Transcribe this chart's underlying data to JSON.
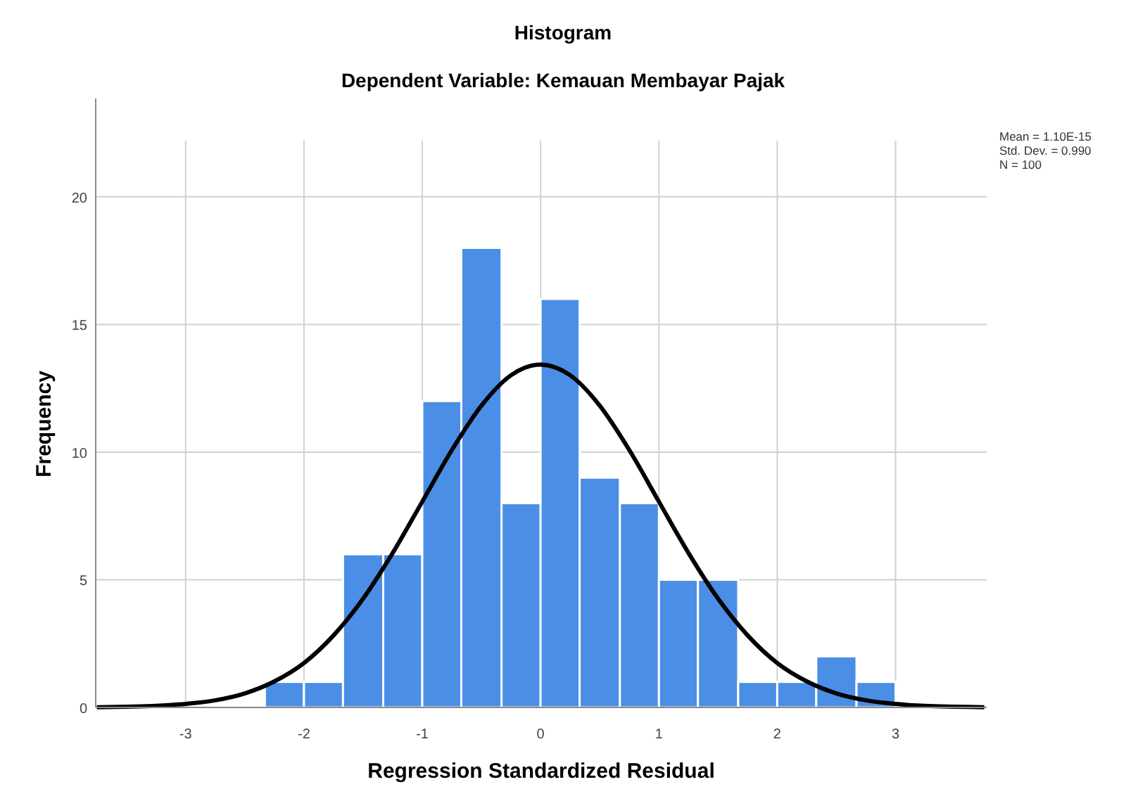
{
  "chart_data": {
    "type": "histogram",
    "title": "Histogram",
    "subtitle": "Dependent Variable: Kemauan Membayar Pajak",
    "xlabel": "Regression Standardized Residual",
    "ylabel": "Frequency",
    "annotations": [
      "Mean = 1.10E-15",
      "Std. Dev. = 0.990",
      "N = 100"
    ],
    "bins": [
      -2.33,
      -2,
      -1.67,
      -1.33,
      -1,
      -0.67,
      -0.33,
      0,
      0.33,
      0.67,
      1,
      1.33,
      1.67,
      2,
      2.33,
      2.67,
      3
    ],
    "series": [
      {
        "color": "#4a8ee6",
        "values": [
          1,
          1,
          6,
          6,
          12,
          18,
          8,
          16,
          9,
          8,
          5,
          5,
          1,
          1,
          2,
          1
        ]
      },
      {
        "type": "line",
        "color": "#000000",
        "x": [
          -3.75,
          -3.5,
          -3.25,
          -3,
          -2.75,
          -2.5,
          -2.25,
          -2,
          -1.75,
          -1.5,
          -1.25,
          -1,
          -0.75,
          -0.5,
          -0.25,
          0,
          0.25,
          0.5,
          0.75,
          1,
          1.25,
          1.5,
          1.75,
          2,
          2.25,
          2.5,
          2.75,
          3,
          3.25,
          3.5,
          3.75
        ],
        "values": [
          0.01,
          0.03,
          0.06,
          0.14,
          0.28,
          0.55,
          1.02,
          1.74,
          2.82,
          4.26,
          6.05,
          8.06,
          10.08,
          11.82,
          13.01,
          13.43,
          13.01,
          11.82,
          10.08,
          8.06,
          6.05,
          4.26,
          2.82,
          1.74,
          1.02,
          0.55,
          0.28,
          0.14,
          0.06,
          0.03,
          0.01
        ]
      }
    ],
    "xlim": [
      -3.76,
      3.77
    ],
    "ylim": [
      0,
      22.2
    ],
    "xticks": [
      -3,
      -2,
      -1,
      0,
      1,
      2,
      3
    ],
    "yticks": [
      0,
      5,
      10,
      15,
      20
    ],
    "grid": true
  }
}
